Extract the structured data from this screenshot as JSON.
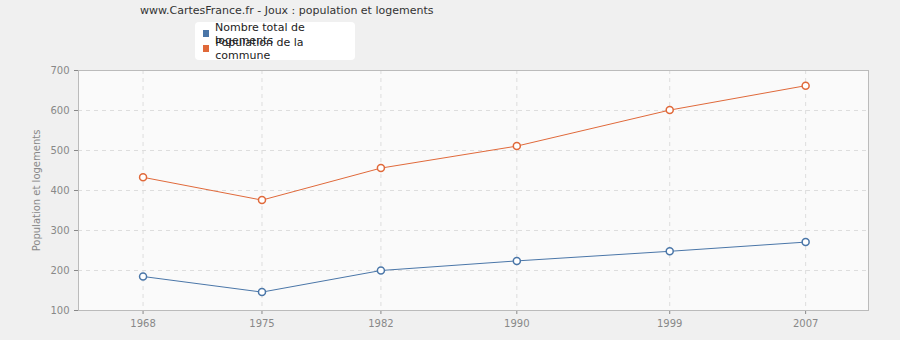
{
  "chart_data": {
    "type": "line",
    "title": "www.CartesFrance.fr - Joux : population et logements",
    "y_label": "Population et logements",
    "x": [
      1968,
      1975,
      1982,
      1990,
      1999,
      2007
    ],
    "series": [
      {
        "name": "Nombre total de logements",
        "color": "#4a76a8",
        "marker": "circle",
        "values": [
          185,
          146,
          200,
          224,
          248,
          271
        ]
      },
      {
        "name": "Population de la commune",
        "color": "#e0693a",
        "marker": "circle",
        "values": [
          433,
          376,
          456,
          511,
          601,
          662
        ]
      }
    ],
    "xlim": [
      1964.2,
      2010.7
    ],
    "xticks": [
      1968,
      1975,
      1982,
      1990,
      1999,
      2007
    ],
    "ylim": [
      100,
      700
    ],
    "yticks": [
      100,
      200,
      300,
      400,
      500,
      600,
      700
    ],
    "grid": true,
    "legend": "top"
  }
}
